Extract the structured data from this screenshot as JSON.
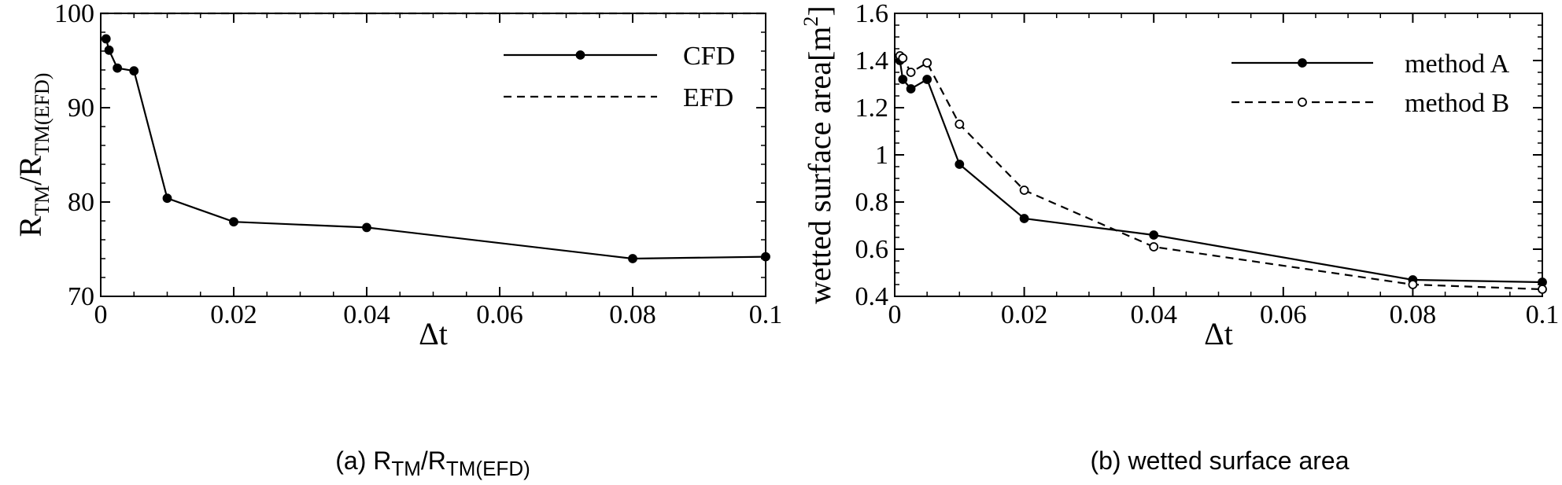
{
  "chart_data": [
    {
      "type": "line",
      "caption": {
        "prefix": "(a) ",
        "num_main": "R",
        "num_sub": "TM",
        "slash": "/",
        "den_main": "R",
        "den_sub": "TM(EFD)"
      },
      "xlabel": "Δt",
      "ylabel": {
        "num_main": "R",
        "num_sub": "TM",
        "slash": "/",
        "den_main": "R",
        "den_sub": "TM(EFD)"
      },
      "xlim": [
        0,
        0.1
      ],
      "ylim": [
        70,
        100
      ],
      "xticks": [
        0,
        0.02,
        0.04,
        0.06,
        0.08,
        0.1
      ],
      "xtick_labels": [
        "0",
        "0.02",
        "0.04",
        "0.06",
        "0.08",
        "0.1"
      ],
      "yticks": [
        70,
        80,
        90,
        100
      ],
      "ytick_labels": [
        "70",
        "80",
        "90",
        "100"
      ],
      "legend_position": "top-right",
      "series": [
        {
          "name": "CFD",
          "style": "solid",
          "marker": "filled",
          "x": [
            0.0008,
            0.00125,
            0.0025,
            0.005,
            0.01,
            0.02,
            0.04,
            0.08,
            0.1
          ],
          "y": [
            97.3,
            96.1,
            94.2,
            93.9,
            80.4,
            77.9,
            77.3,
            74.0,
            74.2
          ]
        },
        {
          "name": "EFD",
          "style": "dashed",
          "marker": "none",
          "x": [
            0,
            0.1
          ],
          "y": [
            100,
            100
          ]
        }
      ]
    },
    {
      "type": "line",
      "caption": {
        "text": "(b) wetted surface area"
      },
      "xlabel": "Δt",
      "ylabel": {
        "main": "wetted surface area[m",
        "sup": "2",
        "close": "]"
      },
      "xlim": [
        0,
        0.1
      ],
      "ylim": [
        0.4,
        1.6
      ],
      "xticks": [
        0,
        0.02,
        0.04,
        0.06,
        0.08,
        0.1
      ],
      "xtick_labels": [
        "0",
        "0.02",
        "0.04",
        "0.06",
        "0.08",
        "0.1"
      ],
      "yticks": [
        0.4,
        0.6,
        0.8,
        1.0,
        1.2,
        1.4,
        1.6
      ],
      "ytick_labels": [
        "0.4",
        "0.6",
        "0.8",
        "1",
        "1.2",
        "1.4",
        "1.6"
      ],
      "legend_position": "top-right",
      "series": [
        {
          "name": "method A",
          "style": "solid",
          "marker": "filled",
          "x": [
            0.0008,
            0.00125,
            0.0025,
            0.005,
            0.01,
            0.02,
            0.04,
            0.08,
            0.1
          ],
          "y": [
            1.4,
            1.32,
            1.28,
            1.32,
            0.96,
            0.73,
            0.66,
            0.47,
            0.46
          ]
        },
        {
          "name": "method B",
          "style": "dashed",
          "marker": "open",
          "x": [
            0.0008,
            0.00125,
            0.0025,
            0.005,
            0.01,
            0.02,
            0.04,
            0.08,
            0.1
          ],
          "y": [
            1.42,
            1.41,
            1.35,
            1.39,
            1.13,
            0.85,
            0.61,
            0.45,
            0.43
          ]
        }
      ]
    }
  ]
}
